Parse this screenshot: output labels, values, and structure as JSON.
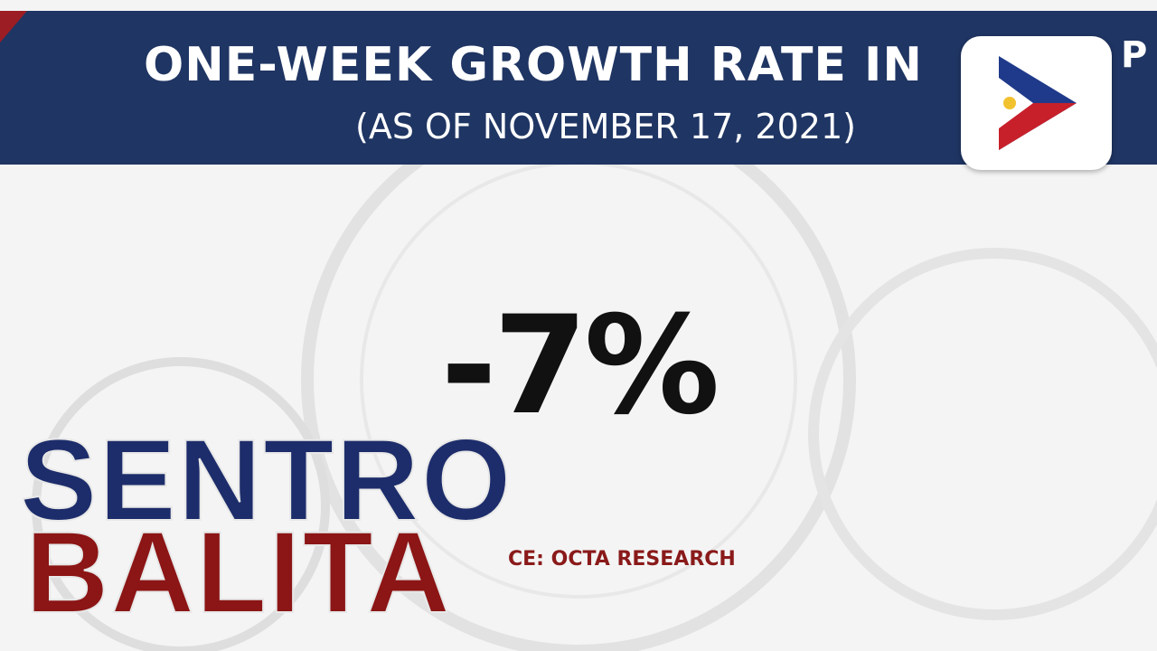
{
  "header": {
    "title": "ONE-WEEK GROWTH RATE IN",
    "title_fragment": "P",
    "subtitle": "(AS OF NOVEMBER 17, 2021)"
  },
  "main": {
    "value": "-7%",
    "source": "CE: OCTA RESEARCH"
  },
  "show_logo": {
    "line1": "SENTRO",
    "line2": "BALITA"
  }
}
